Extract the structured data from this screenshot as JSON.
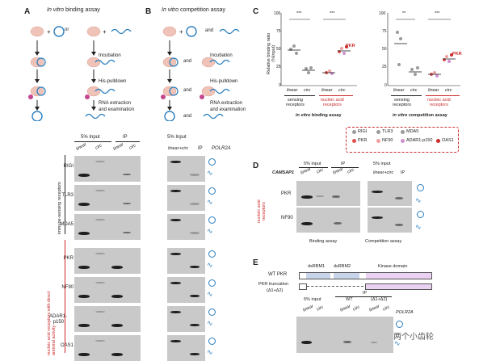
{
  "panels": {
    "A": {
      "letter": "A",
      "title_italic": "In vitro",
      "title_rest": " binding assay",
      "or": "or",
      "plus": "+",
      "steps": [
        "Incubation",
        "His-pulldown",
        "RNA extraction",
        "and examination"
      ]
    },
    "B": {
      "letter": "B",
      "title_italic": "In vitro",
      "title_rest": " competition assay",
      "and": "and",
      "steps": [
        "Incubation",
        "His-pulldown",
        "RNA extraction",
        "and examination"
      ]
    },
    "C": {
      "letter": "C",
      "ylabel": "Relative binding ratio\n(%Input)",
      "sig": [
        "***",
        "***",
        "**",
        "***"
      ],
      "pkr": "PKR",
      "xticks": [
        "linear",
        "circ",
        "linear",
        "circ"
      ],
      "groups": [
        "sensing\nreceptors",
        "nucleic acid\nreceptors"
      ],
      "assay_left_italic": "in vitro",
      "assay_left_rest": " binding assay",
      "assay_right_italic": "in vitro",
      "assay_right_rest": " competition assay",
      "legend": [
        "RIGI",
        "TLR3",
        "MDA5",
        "PKR",
        "NF90",
        "ADAR1-p150",
        "OAS1"
      ]
    },
    "D": {
      "letter": "D",
      "gene": "CAMSAP1",
      "cols_left": [
        "5% input",
        "IP"
      ],
      "cols_right": [
        "5% input",
        "IP"
      ],
      "sub_left": [
        "linear",
        "circ",
        "linear",
        "circ"
      ],
      "sub_right": "linear+circ",
      "rows": [
        "PKR",
        "NF90"
      ],
      "side": "nucleic acid\nreceptors",
      "bottom": [
        "Binding assay",
        "Competition assay"
      ]
    },
    "E": {
      "letter": "E",
      "wt": "WT PKR",
      "trunc": "PKR truncation",
      "trunc2": "(Δ1+Δ2)",
      "domains": [
        "dsRBM1",
        "dsRBM2",
        "Kinase domain"
      ],
      "ip": "IP",
      "cols": [
        "5% input",
        "WT",
        "(Δ1+Δ2)"
      ],
      "sub": [
        "linear",
        "circ",
        "linear",
        "circ",
        "linear",
        "circ"
      ],
      "gene": "POLR2A"
    }
  },
  "blots": {
    "header": {
      "input": "5% Input",
      "ip": "IP",
      "linear": "linear",
      "circ": "circ",
      "input_b": "5% Input",
      "ip_b": "IP",
      "linearcirc": "linear+circ",
      "gene": "POLR2A"
    },
    "rows": [
      "RIGI",
      "TLR3",
      "MDA5",
      "PKR",
      "NF90",
      "ADAR1-\np150",
      "OAS1"
    ],
    "group_top": "immune-sensing receptors",
    "group_bottom": "nucleic acid receptors with direct\nantiviral activity"
  },
  "watermark": "两个小齿轮",
  "colors": {
    "red": "#cc2a2a",
    "blue": "#2a7fc0",
    "pink": "#f0c3b8",
    "lavender": "#d9b8e6"
  }
}
